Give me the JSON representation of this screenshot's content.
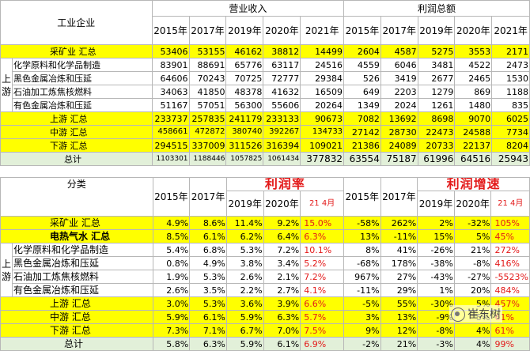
{
  "t1": {
    "corner": "工业企业",
    "group_revenue": "营业收入",
    "group_profit": "利润总额",
    "years_revenue": [
      "2015年",
      "2017年",
      "2019年",
      "2020年",
      "2021年"
    ],
    "years_profit": [
      "2015年",
      "2017年",
      "2019年",
      "2020年",
      "2021年"
    ],
    "side_label": "上游",
    "rows": [
      {
        "label": "采矿业 汇总",
        "values": [
          "53406",
          "53155",
          "46162",
          "38812",
          "14499",
          "2604",
          "4587",
          "5275",
          "3553",
          "2171"
        ]
      },
      {
        "label": "化学原料和化学品制造",
        "values": [
          "83901",
          "88691",
          "65776",
          "63117",
          "24516",
          "4559",
          "6046",
          "3481",
          "4522",
          "2473"
        ]
      },
      {
        "label": "黑色金属冶炼和压延",
        "values": [
          "64606",
          "70243",
          "70725",
          "72777",
          "29384",
          "526",
          "3419",
          "2677",
          "2465",
          "1530"
        ]
      },
      {
        "label": "石油加工炼焦核燃料",
        "values": [
          "34063",
          "41850",
          "48378",
          "41632",
          "16509",
          "649",
          "2203",
          "1279",
          "869",
          "1188"
        ]
      },
      {
        "label": "有色金属冶炼和压延",
        "values": [
          "51167",
          "57051",
          "56300",
          "55606",
          "20264",
          "1349",
          "2024",
          "1261",
          "1480",
          "835"
        ]
      },
      {
        "label": "上游 汇总",
        "values": [
          "233737",
          "257835",
          "241179",
          "233133",
          "90673",
          "7082",
          "13692",
          "8698",
          "9070",
          "6025"
        ]
      },
      {
        "label": "中游 汇总",
        "values": [
          "458661",
          "472872",
          "380740",
          "392267",
          "134733",
          "27142",
          "28730",
          "22473",
          "24588",
          "7734"
        ]
      },
      {
        "label": "下游 汇总",
        "values": [
          "294515",
          "337009",
          "311526",
          "316394",
          "109021",
          "21386",
          "24089",
          "20733",
          "22137",
          "8204"
        ]
      },
      {
        "label": "总计",
        "values": [
          "1103301",
          "1188446",
          "1057825",
          "1061434",
          "377832",
          "63554",
          "75187",
          "61996",
          "64516",
          "25943"
        ]
      }
    ]
  },
  "t2": {
    "corner": "分类",
    "title_margin": "利润率",
    "title_growth": "利润增速",
    "years": [
      "2015年",
      "2017年",
      "2019年",
      "2020年"
    ],
    "col_2104_margin": "21 4月",
    "col_2104_growth": "21 4月",
    "side_label": "上游",
    "rows": [
      {
        "label": "采矿业 汇总",
        "values": [
          "4.9%",
          "8.6%",
          "11.4%",
          "9.2%",
          "15.0%",
          "-58%",
          "262%",
          "2%",
          "-32%",
          "105%"
        ]
      },
      {
        "label": "电热气水 汇总",
        "values": [
          "8.5%",
          "6.1%",
          "6.2%",
          "6.4%",
          "6.3%",
          "13%",
          "-11%",
          "15%",
          "5%",
          "45%"
        ]
      },
      {
        "label": "化学原料和化学品制造",
        "values": [
          "5.4%",
          "6.8%",
          "5.3%",
          "7.2%",
          "10.1%",
          "8%",
          "41%",
          "-26%",
          "21%",
          "272%"
        ]
      },
      {
        "label": "黑色金属冶炼和压延",
        "values": [
          "0.8%",
          "4.9%",
          "3.8%",
          "3.4%",
          "5.2%",
          "-68%",
          "178%",
          "-38%",
          "-8%",
          "416%"
        ]
      },
      {
        "label": "石油加工炼焦核燃料",
        "values": [
          "1.9%",
          "5.3%",
          "2.6%",
          "2.1%",
          "7.2%",
          "967%",
          "27%",
          "-43%",
          "-27%",
          "-5523%"
        ]
      },
      {
        "label": "有色金属冶炼和压延",
        "values": [
          "2.6%",
          "3.5%",
          "2.2%",
          "2.7%",
          "4.1%",
          "-11%",
          "29%",
          "1%",
          "20%",
          "484%"
        ]
      },
      {
        "label": "上游 汇总",
        "values": [
          "3.0%",
          "5.3%",
          "3.6%",
          "3.9%",
          "6.6%",
          "-5%",
          "55%",
          "-30%",
          "5%",
          "457%"
        ]
      },
      {
        "label": "中游 汇总",
        "values": [
          "5.9%",
          "6.1%",
          "5.9%",
          "6.3%",
          "5.7%",
          "3%",
          "13%",
          "-9%",
          "5%",
          "61%"
        ]
      },
      {
        "label": "下游 汇总",
        "values": [
          "7.3%",
          "7.1%",
          "6.7%",
          "7.0%",
          "7.5%",
          "9%",
          "12%",
          "-8%",
          "4%",
          "61%"
        ]
      },
      {
        "label": "总计",
        "values": [
          "5.8%",
          "6.3%",
          "5.9%",
          "6.1%",
          "6.9%",
          "-2%",
          "21%",
          "-3%",
          "4%",
          "99%"
        ]
      }
    ]
  },
  "watermark": "崔东树"
}
